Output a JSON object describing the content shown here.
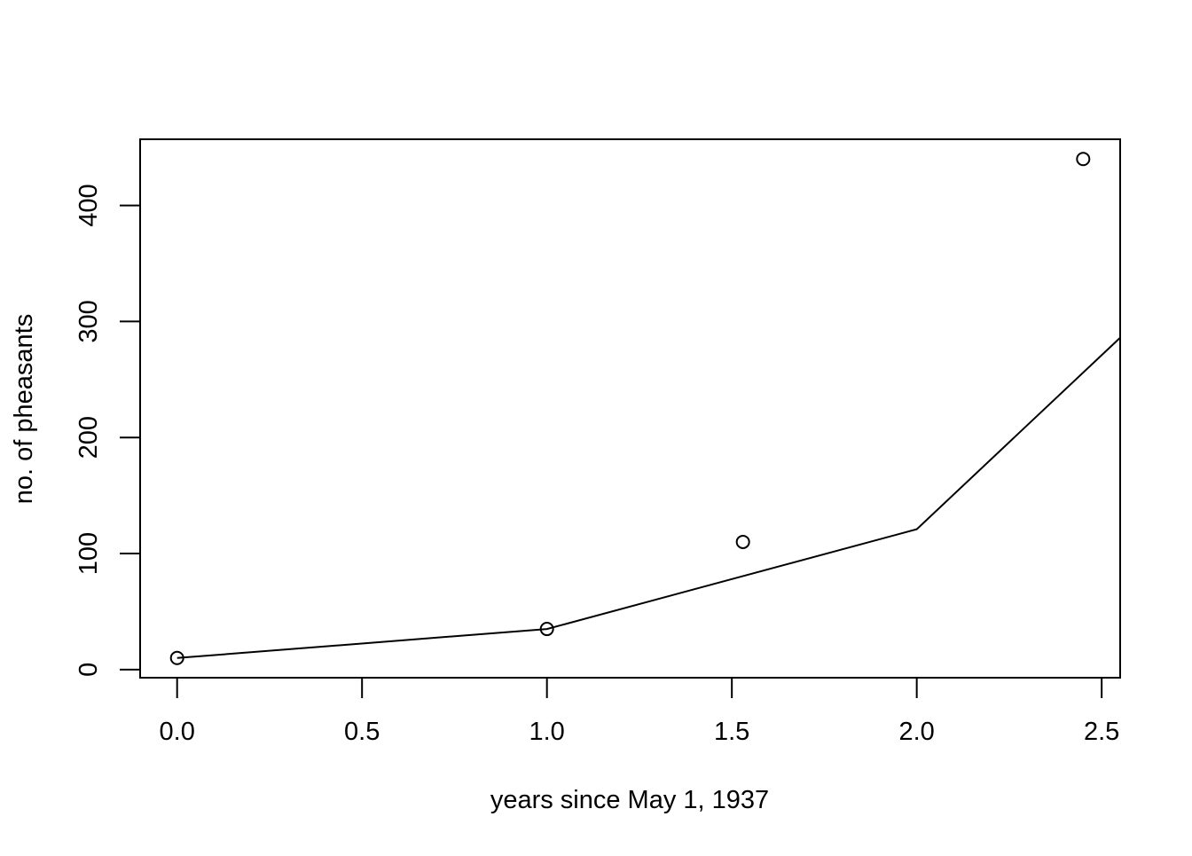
{
  "chart_data": {
    "type": "scatter",
    "title": "",
    "xlabel": "years since May 1, 1937",
    "ylabel": "no. of pheasants",
    "xlim": [
      -0.1,
      2.55
    ],
    "ylim": [
      -7,
      457
    ],
    "xticks": [
      0.0,
      0.5,
      1.0,
      1.5,
      2.0,
      2.5
    ],
    "xtick_labels": [
      "0.0",
      "0.5",
      "1.0",
      "1.5",
      "2.0",
      "2.5"
    ],
    "yticks": [
      0,
      100,
      200,
      300,
      400
    ],
    "ytick_labels": [
      "0",
      "100",
      "200",
      "300",
      "400"
    ],
    "points": {
      "x": [
        0,
        1,
        1.53,
        2.45
      ],
      "y": [
        10,
        35,
        110,
        440
      ]
    },
    "line": {
      "x": [
        0,
        1,
        2,
        2.55
      ],
      "y": [
        10,
        35,
        121,
        286
      ]
    },
    "grid": false,
    "colors": {
      "marks": "#000000",
      "background": "#ffffff"
    }
  }
}
